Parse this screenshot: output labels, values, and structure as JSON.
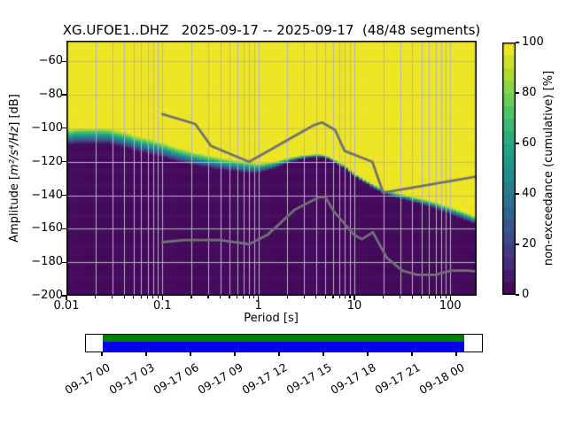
{
  "title": "XG.UFOE1..DHZ   2025-09-17 -- 2025-09-17  (48/48 segments)",
  "station": {
    "id": "XG.UFOE1..DHZ",
    "date_start": "2025-09-17",
    "date_end": "2025-09-17",
    "segments": "48/48"
  },
  "axes": {
    "xlabel": "Period [s]",
    "ylabel_prefix": "Amplitude [",
    "ylabel_math": "m²/s⁴/Hz",
    "ylabel_suffix": "] [dB]",
    "xlim": [
      0.01,
      188
    ],
    "ylim": [
      -200,
      -47.7
    ],
    "xticks": [
      {
        "value": 0.01,
        "label": "0.01"
      },
      {
        "value": 0.1,
        "label": "0.1"
      },
      {
        "value": 1,
        "label": "1"
      },
      {
        "value": 10,
        "label": "10"
      },
      {
        "value": 100,
        "label": "100"
      }
    ],
    "yticks": [
      {
        "value": -200,
        "label": "−200"
      },
      {
        "value": -180,
        "label": "−180"
      },
      {
        "value": -160,
        "label": "−160"
      },
      {
        "value": -140,
        "label": "−140"
      },
      {
        "value": -120,
        "label": "−120"
      },
      {
        "value": -100,
        "label": "−100"
      },
      {
        "value": -80,
        "label": "−80"
      },
      {
        "value": -60,
        "label": "−60"
      }
    ],
    "grid": true,
    "grid_color": "#b5b5bd",
    "frame_color": "#000000"
  },
  "colorbar": {
    "label": "non-exceedance (cumulative) [%]",
    "ticks": [
      {
        "value": 0,
        "label": "0"
      },
      {
        "value": 20,
        "label": "20"
      },
      {
        "value": 40,
        "label": "40"
      },
      {
        "value": 60,
        "label": "60"
      },
      {
        "value": 80,
        "label": "80"
      },
      {
        "value": 100,
        "label": "100"
      }
    ],
    "levels": 20,
    "range": [
      0,
      100
    ]
  },
  "colors": {
    "noise_model_line": "#707274",
    "viridis_stops": [
      [
        0.0,
        "#440154"
      ],
      [
        0.1,
        "#482475"
      ],
      [
        0.2,
        "#414487"
      ],
      [
        0.3,
        "#355f8d"
      ],
      [
        0.4,
        "#2a788e"
      ],
      [
        0.5,
        "#21918c"
      ],
      [
        0.6,
        "#22a884"
      ],
      [
        0.7,
        "#44bf70"
      ],
      [
        0.8,
        "#7ad151"
      ],
      [
        0.9,
        "#bddf26"
      ],
      [
        1.0,
        "#fde725"
      ]
    ],
    "timeline_psd": "#008000",
    "timeline_data": "#0000ee"
  },
  "chart_data": {
    "type": "heatmap",
    "title": "XG.UFOE1..DHZ   2025-09-17 -- 2025-09-17  (48/48 segments)",
    "xlabel": "Period [s]",
    "ylabel": "Amplitude [m2/s4/Hz] [dB]",
    "zlabel": "non-exceedance (cumulative) [%]",
    "x_log": true,
    "xlim": [
      0.01,
      188
    ],
    "ylim": [
      -200,
      -47.7
    ],
    "zlim": [
      0,
      100
    ],
    "period_step_octaves": 0.125,
    "db_bin_width": 1,
    "envelope": {
      "comment": "cumulative PSD distribution: center_db = 50% non-exceedance level per period, width_db = spread from 0% to 100%",
      "periods": [
        0.01,
        0.014,
        0.02,
        0.028,
        0.04,
        0.061,
        0.1,
        0.143,
        0.22,
        0.33,
        0.5,
        0.78,
        1.0,
        1.5,
        2.0,
        2.8,
        4.0,
        5.0,
        6.3,
        8.0,
        10.0,
        12.5,
        16.0,
        20.0,
        25.0,
        40.0,
        63.0,
        100.0,
        140.0,
        188.0
      ],
      "center_db": [
        -105.5,
        -104.5,
        -104.5,
        -105,
        -107,
        -110,
        -113,
        -116,
        -118.5,
        -120.5,
        -122,
        -123.5,
        -124,
        -122,
        -119.5,
        -117.5,
        -116.5,
        -117,
        -120,
        -123.5,
        -128,
        -131.5,
        -135,
        -138,
        -139.5,
        -142.5,
        -145.5,
        -149.5,
        -152.5,
        -155.5
      ],
      "width_db": [
        10,
        10,
        10,
        10,
        10,
        10,
        9.5,
        9,
        8.5,
        8,
        7.5,
        7,
        6,
        4.5,
        3,
        2.5,
        2,
        2,
        2,
        2,
        2,
        2,
        2.5,
        2.5,
        3,
        3.5,
        4,
        4.5,
        5,
        5
      ]
    },
    "noise_models": {
      "high": [
        [
          0.1,
          -91.5
        ],
        [
          0.22,
          -97.4
        ],
        [
          0.32,
          -110.5
        ],
        [
          0.8,
          -120.0
        ],
        [
          3.8,
          -98.1
        ],
        [
          4.6,
          -96.5
        ],
        [
          6.3,
          -101.0
        ],
        [
          7.9,
          -113.5
        ],
        [
          15.4,
          -120.0
        ],
        [
          20.0,
          -138.5
        ],
        [
          188.0,
          -128.8
        ]
      ],
      "low": [
        [
          0.1,
          -168.0
        ],
        [
          0.17,
          -166.7
        ],
        [
          0.4,
          -166.7
        ],
        [
          0.8,
          -169.2
        ],
        [
          1.24,
          -163.7
        ],
        [
          2.4,
          -148.6
        ],
        [
          4.3,
          -141.1
        ],
        [
          5.0,
          -141.1
        ],
        [
          6.0,
          -149.0
        ],
        [
          10.0,
          -163.8
        ],
        [
          12.0,
          -166.2
        ],
        [
          15.6,
          -162.1
        ],
        [
          21.9,
          -177.5
        ],
        [
          31.6,
          -185.0
        ],
        [
          45.0,
          -187.5
        ],
        [
          70.0,
          -187.5
        ],
        [
          101.0,
          -185.0
        ],
        [
          154.0,
          -185.0
        ],
        [
          188.0,
          -185.5
        ]
      ]
    }
  },
  "timeline": {
    "tick_labels": [
      "09-17 00",
      "09-17 03",
      "09-17 06",
      "09-17 09",
      "09-17 12",
      "09-17 15",
      "09-17 18",
      "09-17 21",
      "09-18 00"
    ],
    "coverage": {
      "psd_row": "green = PSD segments",
      "data_row": "blue = data",
      "start_frac": 0.042,
      "end_frac": 0.951
    }
  }
}
